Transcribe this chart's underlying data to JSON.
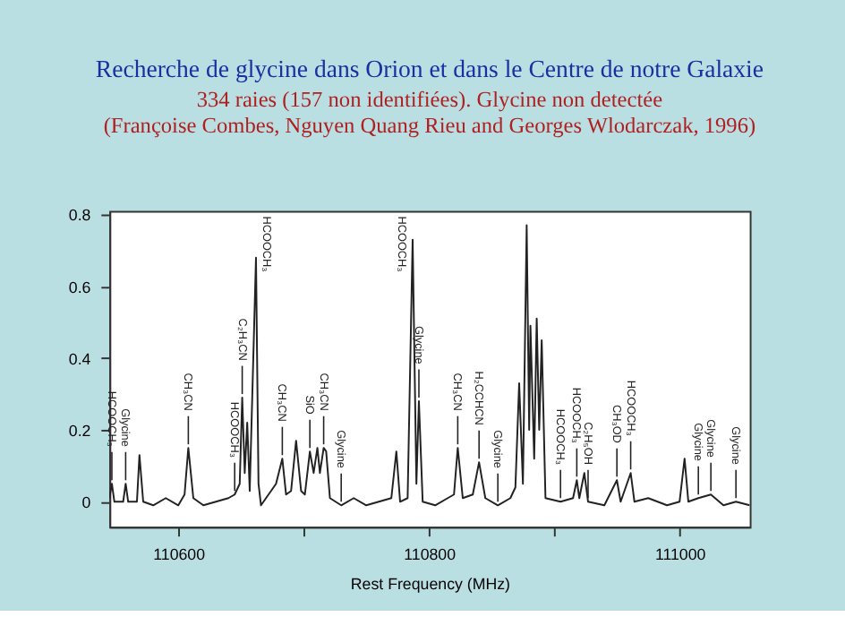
{
  "chart_data": {
    "type": "line",
    "title": "Recherche de glycine dans Orion et dans le Centre de notre Galaxie",
    "subtitle": [
      "334 raies (157 non identifiées). Glycine non detectée",
      "(Françoise Combes, Nguyen Quang Rieu and Georges Wlodarczak, 1996)"
    ],
    "xlabel": "Rest Frequency (MHz)",
    "x": [
      110545,
      110547,
      110549,
      110556,
      110558,
      110560,
      110567,
      110569,
      110572,
      110580,
      110590,
      110600,
      110605,
      110608,
      110612,
      110620,
      110630,
      110640,
      110645,
      110649,
      110651,
      110653,
      110655,
      110657,
      110662,
      110664,
      110666,
      110672,
      110678,
      110683,
      110686,
      110690,
      110694,
      110698,
      110701,
      110705,
      110708,
      110711,
      110713,
      110716,
      110718,
      110721,
      110730,
      110740,
      110750,
      110760,
      110770,
      110774,
      110777,
      110783,
      110787,
      110790,
      110792,
      110795,
      110805,
      110815,
      110820,
      110823,
      110827,
      110835,
      110840,
      110845,
      110855,
      110865,
      110869,
      110872,
      110875,
      110878,
      110880,
      110881,
      110884,
      110886,
      110888,
      110890,
      110893,
      110905,
      110915,
      110918,
      110920,
      110924,
      110927,
      110940,
      110950,
      110953,
      110961,
      110964,
      110975,
      110990,
      111000,
      111004,
      111007,
      111015,
      111025,
      111035,
      111045,
      111056
    ],
    "series": [
      {
        "color": "#222222",
        "values": [
          0.01,
          0.05,
          0.0,
          0.0,
          0.05,
          0.0,
          0.0,
          0.13,
          0.0,
          -0.01,
          0.01,
          -0.01,
          0.02,
          0.15,
          0.01,
          -0.01,
          0.0,
          0.01,
          0.02,
          0.05,
          0.29,
          0.08,
          0.22,
          0.03,
          0.68,
          0.05,
          -0.01,
          0.02,
          0.05,
          0.12,
          0.02,
          0.03,
          0.17,
          0.03,
          0.02,
          0.14,
          0.08,
          0.15,
          0.08,
          0.15,
          0.14,
          0.01,
          -0.01,
          0.01,
          -0.01,
          0.0,
          0.01,
          0.14,
          0.0,
          0.01,
          0.73,
          0.05,
          0.28,
          0.0,
          -0.01,
          0.01,
          0.02,
          0.15,
          0.01,
          0.02,
          0.11,
          0.01,
          -0.01,
          0.01,
          0.04,
          0.33,
          0.05,
          0.77,
          0.2,
          0.49,
          0.12,
          0.51,
          0.2,
          0.45,
          0.01,
          0.0,
          0.01,
          0.06,
          0.01,
          0.08,
          0.0,
          -0.01,
          0.06,
          0.0,
          0.08,
          0.0,
          0.01,
          -0.01,
          0.0,
          0.12,
          0.0,
          0.01,
          0.02,
          -0.01,
          0.0,
          -0.01
        ]
      }
    ],
    "xlim": [
      110545,
      111056
    ],
    "xticks": [
      110600,
      {
        "value": 110700,
        "label": null
      },
      110800,
      {
        "value": 110900,
        "label": null
      },
      111000
    ],
    "ylim": [
      -0.07,
      0.81
    ],
    "yticks": [
      {
        "value": 0,
        "label": "0"
      },
      0.2,
      0.4,
      0.6,
      0.8
    ],
    "grid": false,
    "marker": "none",
    "line_style": "solid",
    "annotations": [
      {
        "text": "HCOOCH₃",
        "x": 110547,
        "y": 0.05
      },
      {
        "text": "Glycine",
        "x": 110558,
        "y": 0.05
      },
      {
        "text": "CH₃CN",
        "x": 110608,
        "y": 0.15
      },
      {
        "text": "HCOOCH₃",
        "x": 110645,
        "y": 0.02
      },
      {
        "text": "C₂H₃CN",
        "x": 110651,
        "y": 0.29
      },
      {
        "text": "HCOOCH₃",
        "x": 110662,
        "y": 0.68
      },
      {
        "text": "CH₃CN",
        "x": 110683,
        "y": 0.12
      },
      {
        "text": "SiO",
        "x": 110705,
        "y": 0.14
      },
      {
        "text": "CH₃CN",
        "x": 110716,
        "y": 0.15
      },
      {
        "text": "Glycine",
        "x": 110730,
        "y": -0.01
      },
      {
        "text": "HCOOCH₃",
        "x": 110787,
        "y": 0.73
      },
      {
        "text": "Glycine",
        "x": 110792,
        "y": 0.28
      },
      {
        "text": "CH₃CN",
        "x": 110823,
        "y": 0.15
      },
      {
        "text": "H₂CCHCN",
        "x": 110840,
        "y": 0.11
      },
      {
        "text": "Glycine",
        "x": 110855,
        "y": -0.01
      },
      {
        "text": "HCOOCH₃",
        "x": 110905,
        "y": 0.0
      },
      {
        "text": "HCOOCH₃",
        "x": 110918,
        "y": 0.06
      },
      {
        "text": "C₂H₅OH",
        "x": 110927,
        "y": 0.0
      },
      {
        "text": "CH₃OD",
        "x": 110950,
        "y": 0.06
      },
      {
        "text": "HCOOCH₃",
        "x": 110961,
        "y": 0.08
      },
      {
        "text": "Glycine",
        "x": 111015,
        "y": 0.01
      },
      {
        "text": "Glycine",
        "x": 111025,
        "y": 0.02
      },
      {
        "text": "Glycine",
        "x": 111045,
        "y": 0.0
      }
    ]
  }
}
